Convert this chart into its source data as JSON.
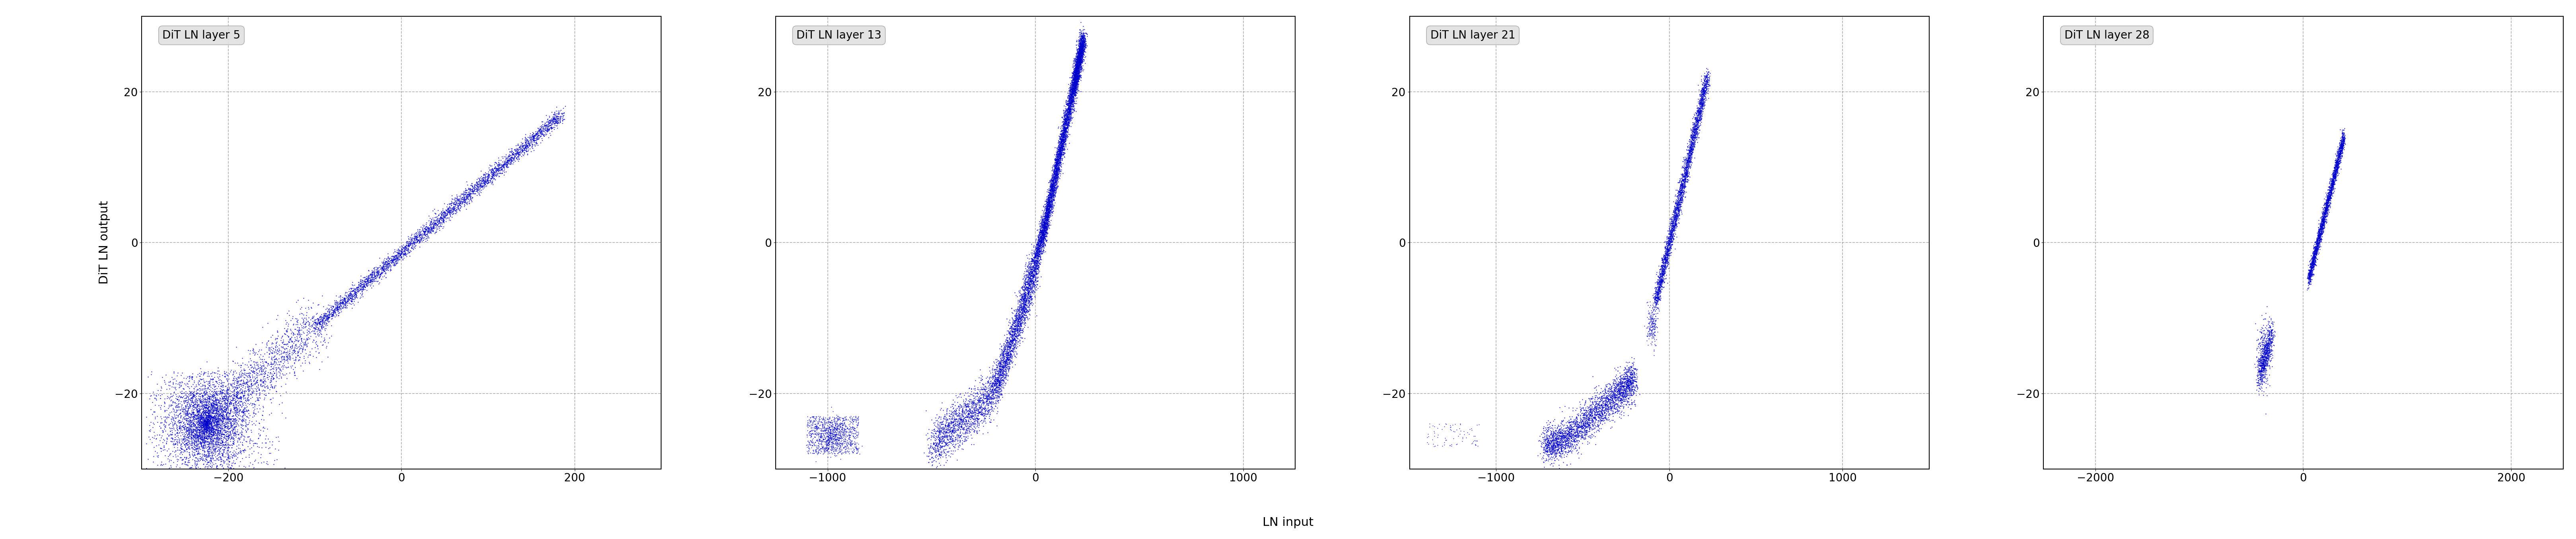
{
  "panels": [
    {
      "title": "DiT LN layer 5",
      "xlim": [
        -300,
        300
      ],
      "xticks": [
        -200,
        0,
        200
      ],
      "ylim": [
        -30,
        30
      ],
      "yticks": [
        -20,
        0,
        20
      ]
    },
    {
      "title": "DiT LN layer 13",
      "xlim": [
        -1250,
        1250
      ],
      "xticks": [
        -1000,
        0,
        1000
      ],
      "ylim": [
        -30,
        30
      ],
      "yticks": [
        -20,
        0,
        20
      ]
    },
    {
      "title": "DiT LN layer 21",
      "xlim": [
        -1500,
        1500
      ],
      "xticks": [
        -1000,
        0,
        1000
      ],
      "ylim": [
        -30,
        30
      ],
      "yticks": [
        -20,
        0,
        20
      ]
    },
    {
      "title": "DiT LN layer 28",
      "xlim": [
        -2500,
        2500
      ],
      "xticks": [
        -2000,
        0,
        2000
      ],
      "ylim": [
        -30,
        30
      ],
      "yticks": [
        -20,
        0,
        20
      ]
    }
  ],
  "ylabel": "DiT LN output",
  "xlabel": "LN input",
  "dot_color": "#0000cc",
  "dot_size": 2.5,
  "background_color": "#ffffff",
  "grid_color": "#999999",
  "title_fontsize": 20,
  "label_fontsize": 22,
  "tick_fontsize": 20
}
